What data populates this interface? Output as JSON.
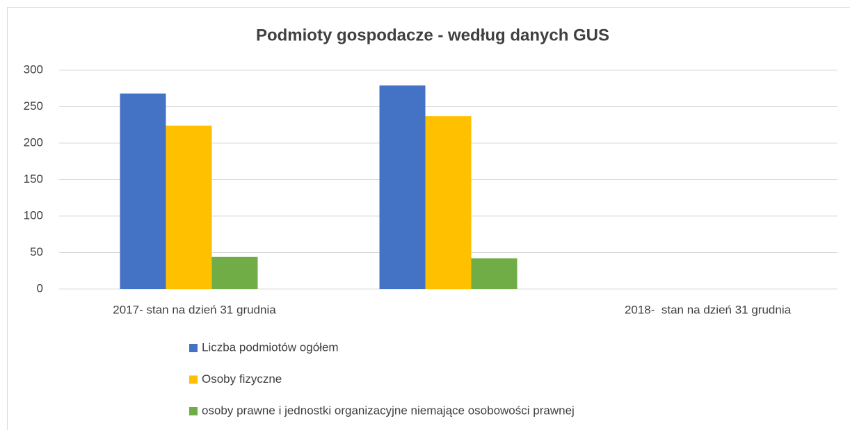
{
  "chart_data": {
    "type": "bar",
    "title": "Podmioty gospodacze - według danych GUS",
    "categories": [
      "2017- stan na dzień 31 grudnia",
      null,
      "2018-  stan na dzień 31 grudnia"
    ],
    "series": [
      {
        "name": "Liczba podmiotów ogółem",
        "color": "#4472c4",
        "values": [
          268,
          279,
          null
        ]
      },
      {
        "name": "Osoby fizyczne",
        "color": "#ffc000",
        "values": [
          224,
          237,
          null
        ]
      },
      {
        "name": "osoby prawne i jednostki organizacyjne niemające osobowości prawnej",
        "color": "#70ad47",
        "values": [
          44,
          42,
          null
        ]
      }
    ],
    "ylim": [
      0,
      300
    ],
    "yticks": [
      0,
      50,
      100,
      150,
      200,
      250,
      300
    ],
    "grid": true,
    "legend": "bottom"
  }
}
